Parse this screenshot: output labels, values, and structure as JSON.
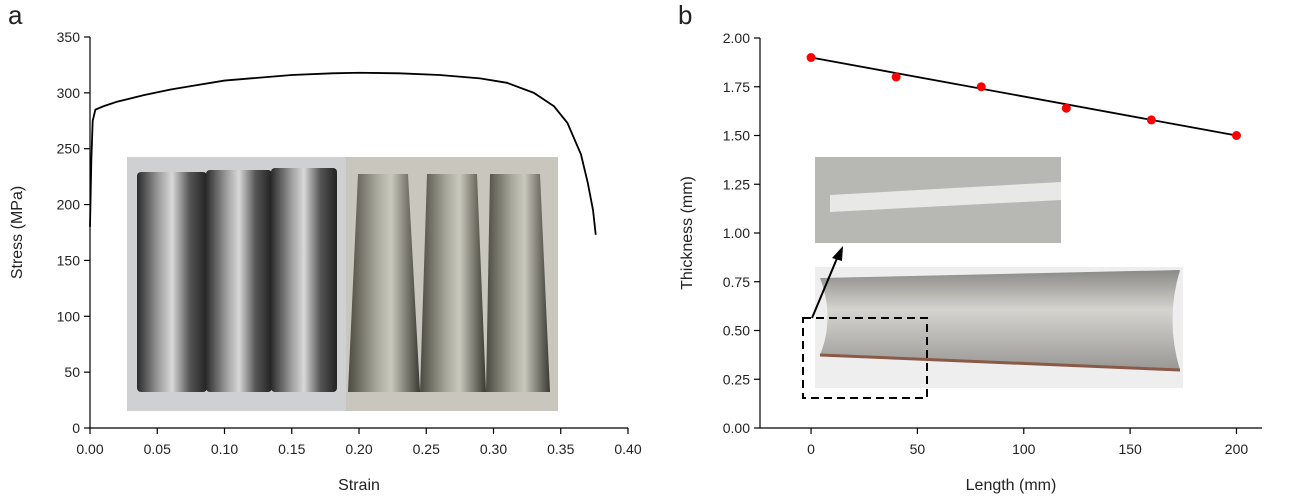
{
  "chart_data": [
    {
      "type": "line",
      "panel_label": "a",
      "x_label": "Strain",
      "y_label": "Stress (MPa)",
      "x": [
        0.0,
        0.001,
        0.002,
        0.004,
        0.01,
        0.02,
        0.04,
        0.06,
        0.08,
        0.1,
        0.12,
        0.15,
        0.18,
        0.2,
        0.23,
        0.26,
        0.29,
        0.31,
        0.33,
        0.345,
        0.355,
        0.365,
        0.37,
        0.374,
        0.376
      ],
      "values": [
        180,
        240,
        275,
        285,
        288,
        292,
        298,
        303,
        307,
        311,
        313,
        316,
        317.5,
        318,
        317.5,
        316,
        313,
        309,
        300,
        288,
        273,
        245,
        220,
        195,
        173
      ],
      "color": "#000000",
      "xlim": [
        0,
        0.4
      ],
      "xticks": [
        {
          "value": 0,
          "label": "0.00"
        },
        {
          "value": 0.05,
          "label": "0.05"
        },
        {
          "value": 0.1,
          "label": "0.10"
        },
        {
          "value": 0.15,
          "label": "0.15"
        },
        {
          "value": 0.2,
          "label": "0.20"
        },
        {
          "value": 0.25,
          "label": "0.25"
        },
        {
          "value": 0.3,
          "label": "0.30"
        },
        {
          "value": 0.35,
          "label": "0.35"
        },
        {
          "value": 0.4,
          "label": "0.40"
        }
      ],
      "ylim": [
        0,
        350
      ],
      "yticks": [
        0,
        50,
        100,
        150,
        200,
        250,
        300,
        350
      ]
    },
    {
      "type": "scatter",
      "panel_label": "b",
      "x_label": "Length (mm)",
      "y_label": "Thickness (mm)",
      "x": [
        0,
        40,
        80,
        120,
        160,
        200
      ],
      "values": [
        1.9,
        1.8,
        1.75,
        1.64,
        1.58,
        1.5
      ],
      "color": "#ff0000",
      "fit": {
        "x": [
          0,
          200
        ],
        "values": [
          1.9,
          1.5
        ],
        "color": "#000000"
      },
      "xlim": [
        -24,
        212
      ],
      "xticks": [
        0,
        50,
        100,
        150,
        200
      ],
      "ylim": [
        0,
        2.0
      ],
      "yticks": [
        {
          "value": 0,
          "label": "0.00"
        },
        {
          "value": 0.25,
          "label": "0.25"
        },
        {
          "value": 0.5,
          "label": "0.50"
        },
        {
          "value": 0.75,
          "label": "0.75"
        },
        {
          "value": 1.0,
          "label": "1.00"
        },
        {
          "value": 1.25,
          "label": "1.25"
        },
        {
          "value": 1.5,
          "label": "1.50"
        },
        {
          "value": 1.75,
          "label": "1.75"
        },
        {
          "value": 2.0,
          "label": "2.00"
        }
      ]
    }
  ]
}
